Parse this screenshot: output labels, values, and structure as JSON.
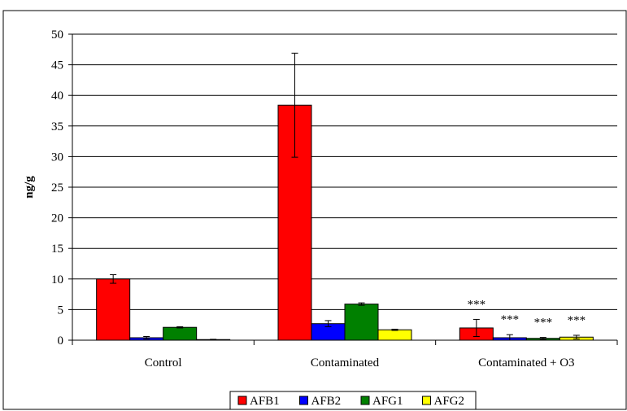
{
  "chart_data": {
    "type": "bar",
    "title": "",
    "xlabel": "",
    "ylabel": "ng/g",
    "ylim": [
      0,
      50
    ],
    "yticks": [
      0,
      5,
      10,
      15,
      20,
      25,
      30,
      35,
      40,
      45,
      50
    ],
    "grid": "horizontal major gridlines",
    "legend": "bottom-center",
    "categories": [
      "Control",
      "Contaminated",
      "Contaminated + O3"
    ],
    "series": [
      {
        "name": "AFB1",
        "color": "#ff0000",
        "values": [
          10.0,
          38.4,
          2.0
        ],
        "errors": [
          0.7,
          8.5,
          1.4
        ],
        "annotations": [
          "",
          "",
          "***"
        ]
      },
      {
        "name": "AFB2",
        "color": "#0000ff",
        "values": [
          0.4,
          2.7,
          0.4
        ],
        "errors": [
          0.2,
          0.5,
          0.5
        ],
        "annotations": [
          "",
          "",
          "***"
        ]
      },
      {
        "name": "AFG1",
        "color": "#008000",
        "values": [
          2.1,
          5.9,
          0.3
        ],
        "errors": [
          0.1,
          0.2,
          0.15
        ],
        "annotations": [
          "",
          "",
          "***"
        ]
      },
      {
        "name": "AFG2",
        "color": "#ffff00",
        "values": [
          0.1,
          1.7,
          0.5
        ],
        "errors": [
          0.05,
          0.1,
          0.3
        ],
        "annotations": [
          "",
          "",
          "***"
        ]
      }
    ]
  }
}
